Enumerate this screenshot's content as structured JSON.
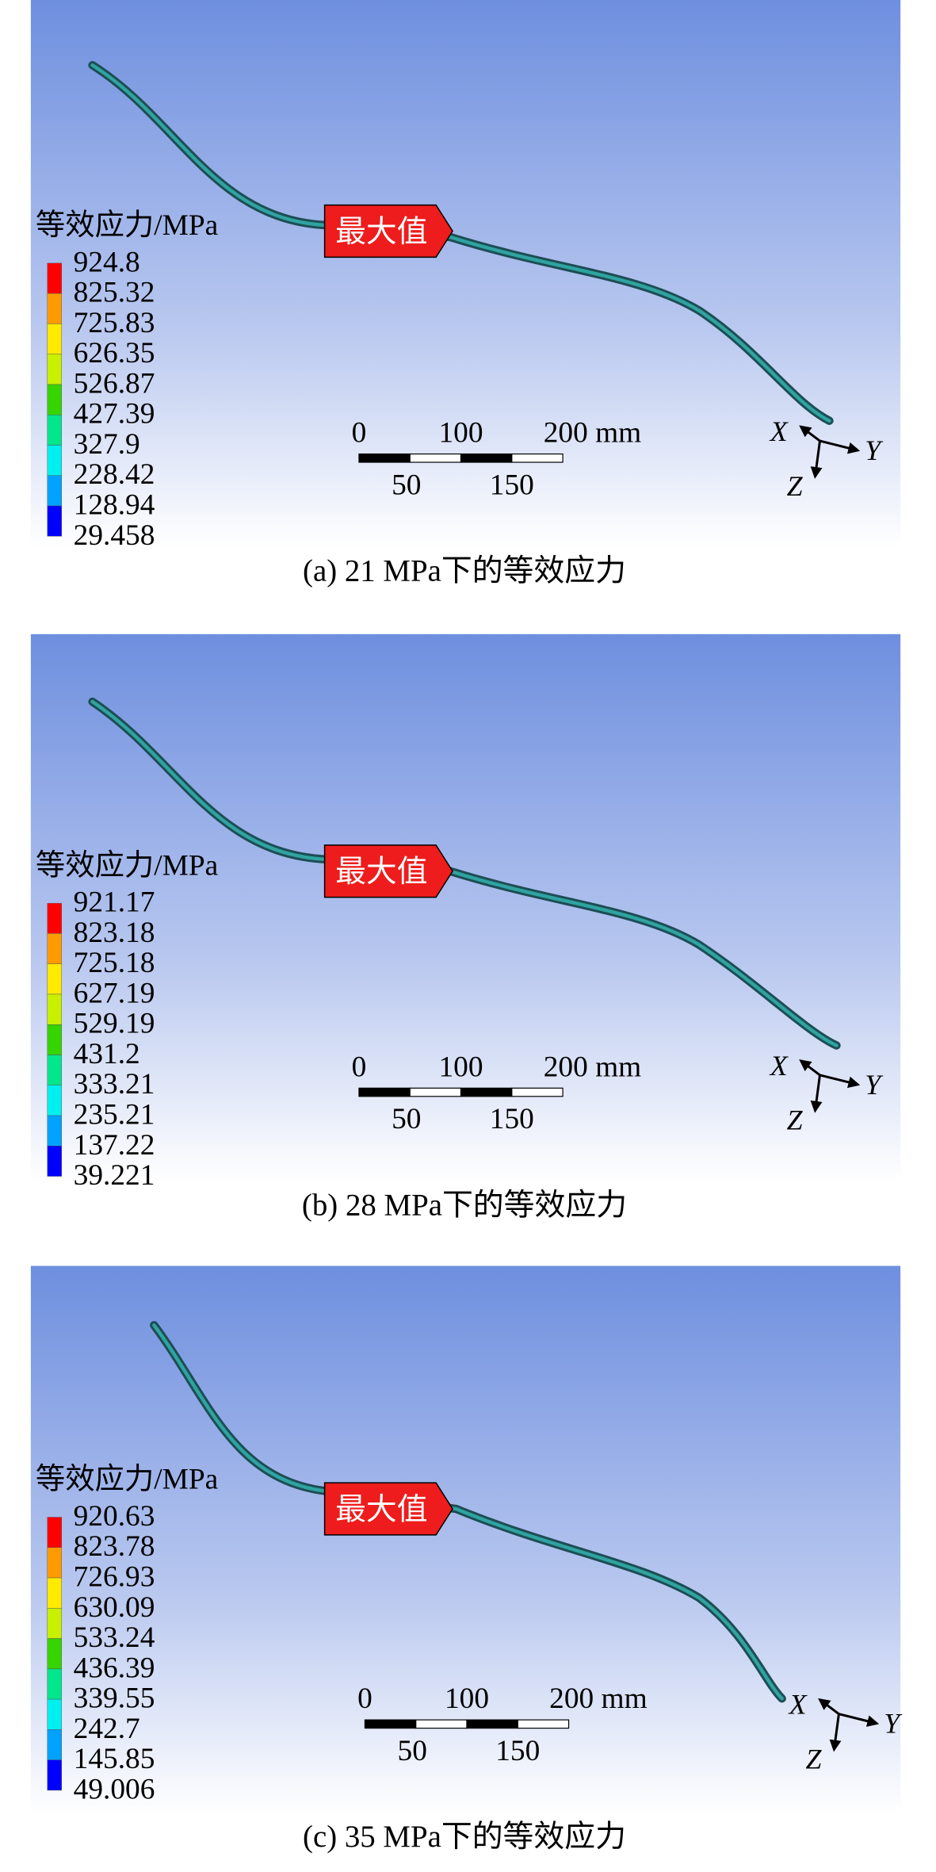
{
  "panels": [
    {
      "legend_title": "等效应力/MPa",
      "legend_values": [
        "924.8",
        "825.32",
        "725.83",
        "626.35",
        "526.87",
        "427.39",
        "327.9",
        "228.42",
        "128.94",
        "29.458"
      ],
      "max_label": "最大值",
      "scale_labels": [
        "0",
        "100",
        "200 mm",
        "50",
        "150"
      ],
      "axes": [
        "X",
        "Y",
        "Z"
      ],
      "caption": "(a) 21 MPa下的等效应力"
    },
    {
      "legend_title": "等效应力/MPa",
      "legend_values": [
        "921.17",
        "823.18",
        "725.18",
        "627.19",
        "529.19",
        "431.2",
        "333.21",
        "235.21",
        "137.22",
        "39.221"
      ],
      "max_label": "最大值",
      "scale_labels": [
        "0",
        "100",
        "200 mm",
        "50",
        "150"
      ],
      "axes": [
        "X",
        "Y",
        "Z"
      ],
      "caption": "(b) 28 MPa下的等效应力"
    },
    {
      "legend_title": "等效应力/MPa",
      "legend_values": [
        "920.63",
        "823.78",
        "726.93",
        "630.09",
        "533.24",
        "436.39",
        "339.55",
        "242.7",
        "145.85",
        "49.006"
      ],
      "max_label": "最大值",
      "scale_labels": [
        "0",
        "100",
        "200 mm",
        "50",
        "150"
      ],
      "axes": [
        "X",
        "Y",
        "Z"
      ],
      "caption": "(c) 35 MPa下的等效应力"
    }
  ]
}
